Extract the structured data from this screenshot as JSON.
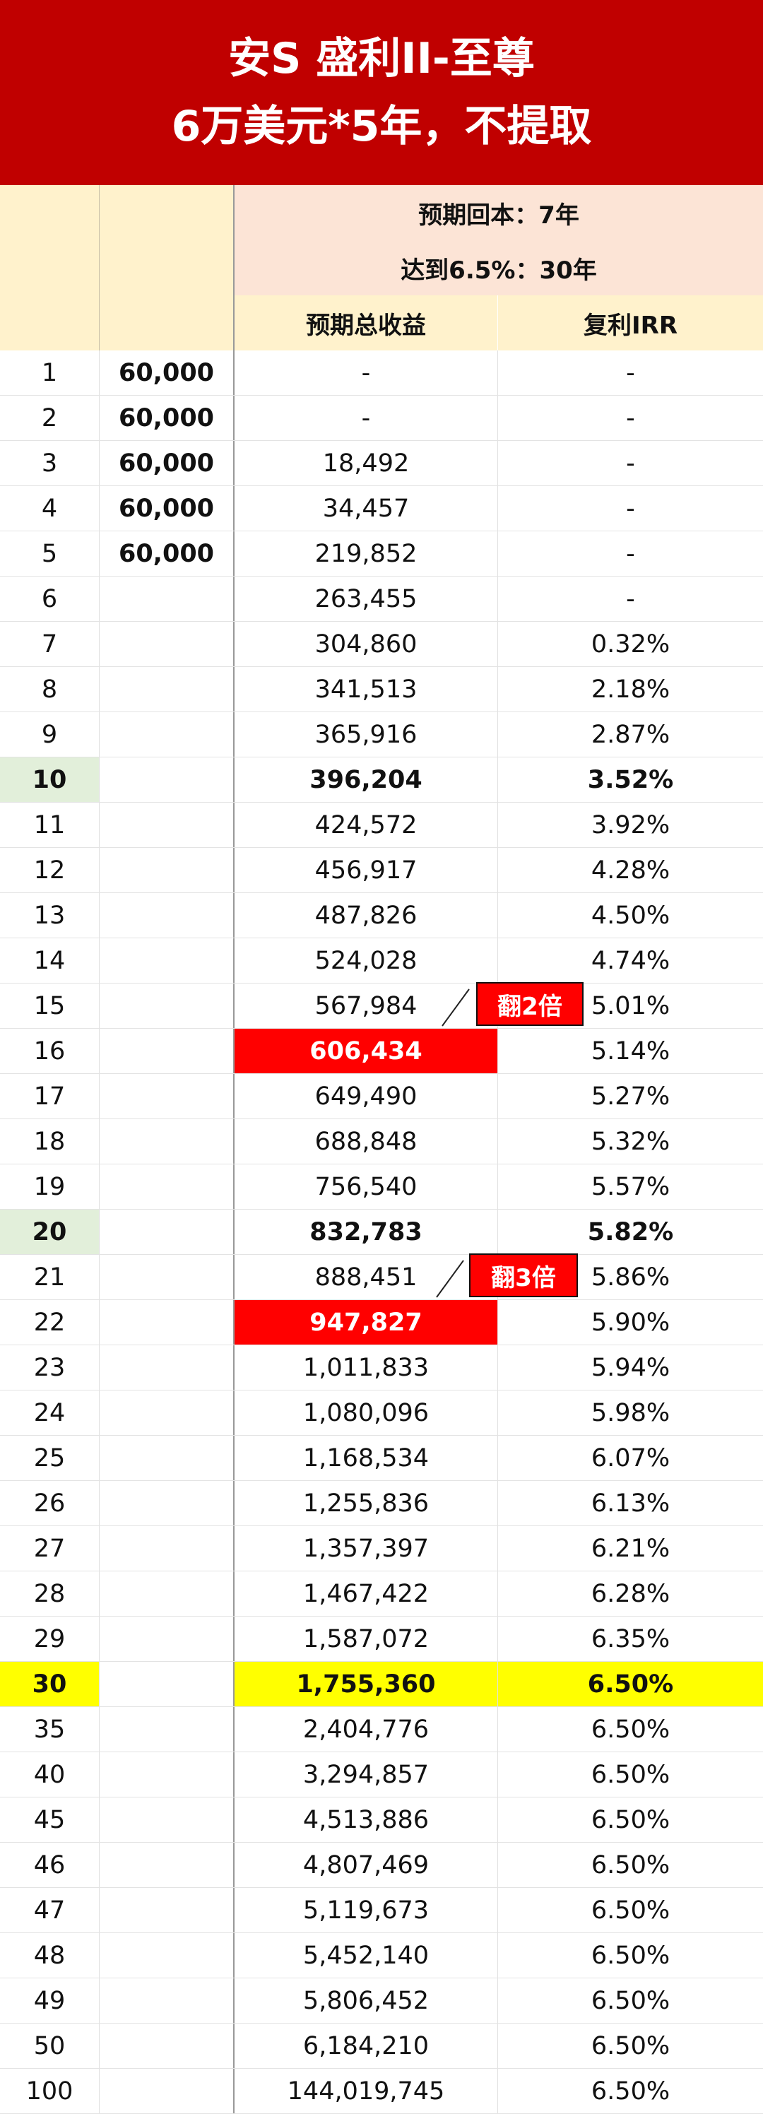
{
  "title": {
    "line1": "安S 盛利II-至尊",
    "line2": "6万美元*5年，不提取"
  },
  "info": {
    "breakeven": "预期回本：7年",
    "target": "达到6.5%：30年"
  },
  "columns": {
    "total": "预期总收益",
    "irr": "复利IRR"
  },
  "callouts": {
    "double": "翻2倍",
    "triple": "翻3倍"
  },
  "colors": {
    "title_bg": "#c00000",
    "header_bg": "#fff2cc",
    "info_bg": "#fce4d6",
    "milestone_year_bg": "#e2efda",
    "highlight_row": "#ffff00",
    "callout_red": "#ff0000"
  },
  "rows": [
    {
      "year": "1",
      "premium": "60,000",
      "total": "-",
      "irr": "-"
    },
    {
      "year": "2",
      "premium": "60,000",
      "total": "-",
      "irr": "-"
    },
    {
      "year": "3",
      "premium": "60,000",
      "total": "18,492",
      "irr": "-"
    },
    {
      "year": "4",
      "premium": "60,000",
      "total": "34,457",
      "irr": "-"
    },
    {
      "year": "5",
      "premium": "60,000",
      "total": "219,852",
      "irr": "-"
    },
    {
      "year": "6",
      "premium": "",
      "total": "263,455",
      "irr": "-"
    },
    {
      "year": "7",
      "premium": "",
      "total": "304,860",
      "irr": "0.32%"
    },
    {
      "year": "8",
      "premium": "",
      "total": "341,513",
      "irr": "2.18%"
    },
    {
      "year": "9",
      "premium": "",
      "total": "365,916",
      "irr": "2.87%"
    },
    {
      "year": "10",
      "premium": "",
      "total": "396,204",
      "irr": "3.52%"
    },
    {
      "year": "11",
      "premium": "",
      "total": "424,572",
      "irr": "3.92%"
    },
    {
      "year": "12",
      "premium": "",
      "total": "456,917",
      "irr": "4.28%"
    },
    {
      "year": "13",
      "premium": "",
      "total": "487,826",
      "irr": "4.50%"
    },
    {
      "year": "14",
      "premium": "",
      "total": "524,028",
      "irr": "4.74%"
    },
    {
      "year": "15",
      "premium": "",
      "total": "567,984",
      "irr": "5.01%"
    },
    {
      "year": "16",
      "premium": "",
      "total": "606,434",
      "irr": "5.14%"
    },
    {
      "year": "17",
      "premium": "",
      "total": "649,490",
      "irr": "5.27%"
    },
    {
      "year": "18",
      "premium": "",
      "total": "688,848",
      "irr": "5.32%"
    },
    {
      "year": "19",
      "premium": "",
      "total": "756,540",
      "irr": "5.57%"
    },
    {
      "year": "20",
      "premium": "",
      "total": "832,783",
      "irr": "5.82%"
    },
    {
      "year": "21",
      "premium": "",
      "total": "888,451",
      "irr": "5.86%"
    },
    {
      "year": "22",
      "premium": "",
      "total": "947,827",
      "irr": "5.90%"
    },
    {
      "year": "23",
      "premium": "",
      "total": "1,011,833",
      "irr": "5.94%"
    },
    {
      "year": "24",
      "premium": "",
      "total": "1,080,096",
      "irr": "5.98%"
    },
    {
      "year": "25",
      "premium": "",
      "total": "1,168,534",
      "irr": "6.07%"
    },
    {
      "year": "26",
      "premium": "",
      "total": "1,255,836",
      "irr": "6.13%"
    },
    {
      "year": "27",
      "premium": "",
      "total": "1,357,397",
      "irr": "6.21%"
    },
    {
      "year": "28",
      "premium": "",
      "total": "1,467,422",
      "irr": "6.28%"
    },
    {
      "year": "29",
      "premium": "",
      "total": "1,587,072",
      "irr": "6.35%"
    },
    {
      "year": "30",
      "premium": "",
      "total": "1,755,360",
      "irr": "6.50%"
    },
    {
      "year": "35",
      "premium": "",
      "total": "2,404,776",
      "irr": "6.50%"
    },
    {
      "year": "40",
      "premium": "",
      "total": "3,294,857",
      "irr": "6.50%"
    },
    {
      "year": "45",
      "premium": "",
      "total": "4,513,886",
      "irr": "6.50%"
    },
    {
      "year": "46",
      "premium": "",
      "total": "4,807,469",
      "irr": "6.50%"
    },
    {
      "year": "47",
      "premium": "",
      "total": "5,119,673",
      "irr": "6.50%"
    },
    {
      "year": "48",
      "premium": "",
      "total": "5,452,140",
      "irr": "6.50%"
    },
    {
      "year": "49",
      "premium": "",
      "total": "5,806,452",
      "irr": "6.50%"
    },
    {
      "year": "50",
      "premium": "",
      "total": "6,184,210",
      "irr": "6.50%"
    },
    {
      "year": "100",
      "premium": "",
      "total": "144,019,745",
      "irr": "6.50%"
    }
  ]
}
